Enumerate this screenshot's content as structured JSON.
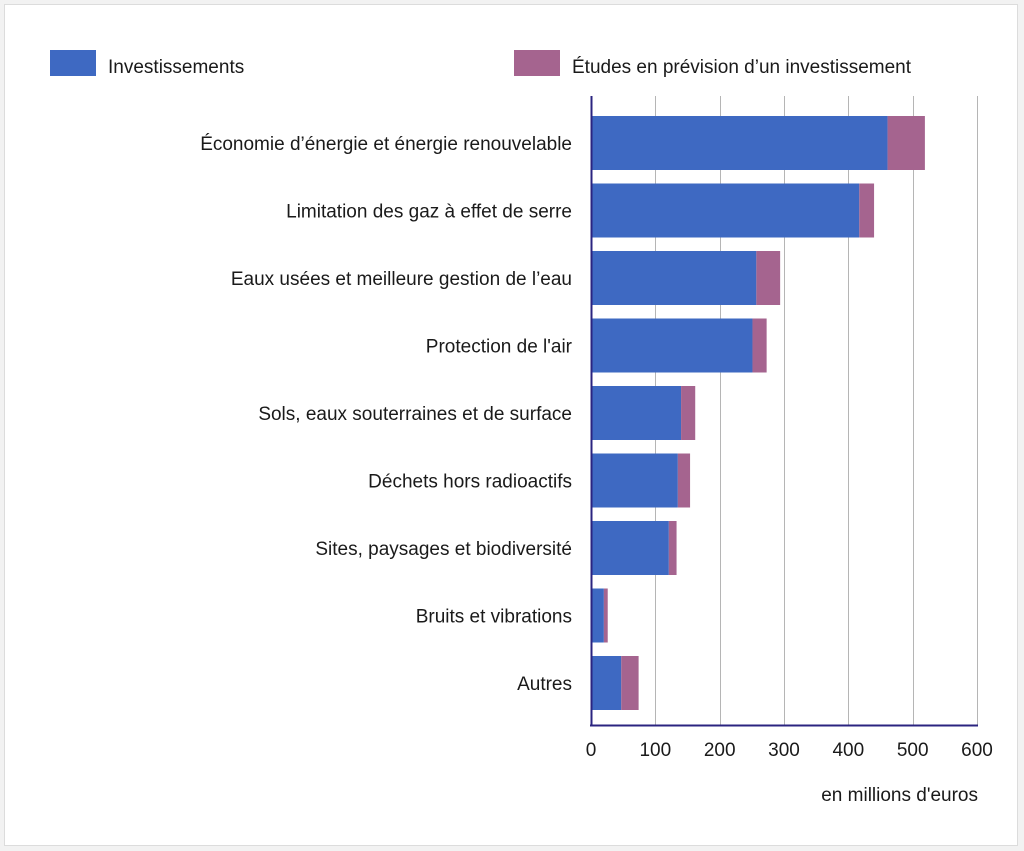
{
  "chart_data": {
    "type": "bar",
    "orientation": "horizontal",
    "stacked": true,
    "categories": [
      "Économie d’énergie et énergie renouvelable",
      "Limitation des gaz à effet de serre",
      "Eaux usées et meilleure gestion de l’eau",
      "Protection de l'air",
      "Sols, eaux souterraines et de surface",
      "Déchets hors radioactifs",
      "Sites, paysages et biodiversité",
      "Bruits et vibrations",
      "Autres"
    ],
    "series": [
      {
        "name": "Investissements",
        "color": "#3e69c2",
        "values": [
          461,
          417,
          257,
          251,
          140,
          135,
          121,
          20,
          47
        ]
      },
      {
        "name": "Études en prévision d’un investissement",
        "color": "#a5648f",
        "values": [
          58,
          23,
          37,
          22,
          22,
          19,
          12,
          6,
          27
        ]
      }
    ],
    "xlabel": "en millions d'euros",
    "ylabel": "",
    "xlim": [
      0,
      600
    ],
    "xticks": [
      0,
      100,
      200,
      300,
      400,
      500,
      600
    ],
    "grid": true,
    "legend_position": "top"
  }
}
